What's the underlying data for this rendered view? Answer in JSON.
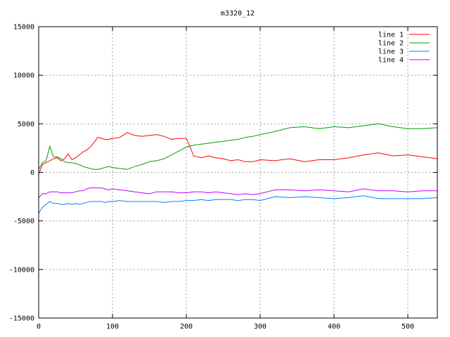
{
  "chart_data": {
    "type": "line",
    "title": "m3320_12",
    "xlabel": "",
    "ylabel": "",
    "xlim": [
      0,
      540
    ],
    "ylim": [
      -15000,
      15000
    ],
    "x_ticks": [
      0,
      100,
      200,
      300,
      400,
      500
    ],
    "y_ticks": [
      -15000,
      -10000,
      -5000,
      0,
      5000,
      10000,
      15000
    ],
    "grid": true,
    "legend_position": "top-right",
    "x": [
      0,
      5,
      10,
      15,
      20,
      25,
      30,
      35,
      40,
      45,
      50,
      55,
      60,
      65,
      70,
      75,
      80,
      85,
      90,
      95,
      100,
      110,
      120,
      130,
      140,
      150,
      160,
      170,
      180,
      190,
      200,
      210,
      220,
      230,
      240,
      250,
      260,
      270,
      280,
      290,
      300,
      320,
      340,
      360,
      380,
      400,
      420,
      440,
      460,
      480,
      500,
      520,
      540
    ],
    "series": [
      {
        "name": "line 1",
        "color": "#ff0000",
        "values": [
          -200,
          800,
          1000,
          1200,
          1400,
          1500,
          1200,
          1400,
          1900,
          1300,
          1500,
          1800,
          2100,
          2300,
          2600,
          3100,
          3600,
          3500,
          3400,
          3400,
          3500,
          3600,
          4100,
          3800,
          3700,
          3800,
          3900,
          3700,
          3400,
          3500,
          3500,
          1700,
          1500,
          1700,
          1500,
          1400,
          1200,
          1300,
          1100,
          1100,
          1300,
          1200,
          1400,
          1100,
          1300,
          1300,
          1500,
          1800,
          2000,
          1700,
          1800,
          1600,
          1400
        ]
      },
      {
        "name": "line 2",
        "color": "#00a000",
        "values": [
          300,
          1000,
          1200,
          2700,
          1600,
          1600,
          1400,
          1100,
          1000,
          1000,
          900,
          800,
          600,
          500,
          400,
          300,
          300,
          400,
          500,
          600,
          500,
          400,
          300,
          600,
          800,
          1100,
          1200,
          1400,
          1800,
          2200,
          2600,
          2800,
          2900,
          3000,
          3100,
          3200,
          3300,
          3400,
          3600,
          3700,
          3900,
          4200,
          4600,
          4700,
          4500,
          4700,
          4600,
          4800,
          5000,
          4700,
          4500,
          4500,
          4600
        ]
      },
      {
        "name": "line 3",
        "color": "#0080ff",
        "values": [
          -4200,
          -3600,
          -3300,
          -3000,
          -3200,
          -3200,
          -3300,
          -3300,
          -3200,
          -3300,
          -3200,
          -3300,
          -3200,
          -3100,
          -3000,
          -3000,
          -3000,
          -3000,
          -3100,
          -3000,
          -3000,
          -2900,
          -3000,
          -3000,
          -3000,
          -3000,
          -3000,
          -3100,
          -3000,
          -3000,
          -2900,
          -2900,
          -2800,
          -2900,
          -2800,
          -2800,
          -2800,
          -2900,
          -2800,
          -2800,
          -2900,
          -2500,
          -2600,
          -2500,
          -2600,
          -2700,
          -2600,
          -2400,
          -2700,
          -2700,
          -2700,
          -2700,
          -2600
        ]
      },
      {
        "name": "line 4",
        "color": "#c000ff",
        "values": [
          -2600,
          -2200,
          -2200,
          -2000,
          -2000,
          -2000,
          -2100,
          -2100,
          -2100,
          -2100,
          -2000,
          -1900,
          -1900,
          -1700,
          -1600,
          -1600,
          -1600,
          -1600,
          -1700,
          -1800,
          -1700,
          -1800,
          -1900,
          -2000,
          -2100,
          -2200,
          -2000,
          -2000,
          -2000,
          -2100,
          -2100,
          -2000,
          -2000,
          -2100,
          -2000,
          -2100,
          -2200,
          -2300,
          -2200,
          -2300,
          -2200,
          -1800,
          -1800,
          -1900,
          -1800,
          -1900,
          -2000,
          -1700,
          -1900,
          -1900,
          -2000,
          -1900,
          -1900
        ]
      }
    ]
  }
}
